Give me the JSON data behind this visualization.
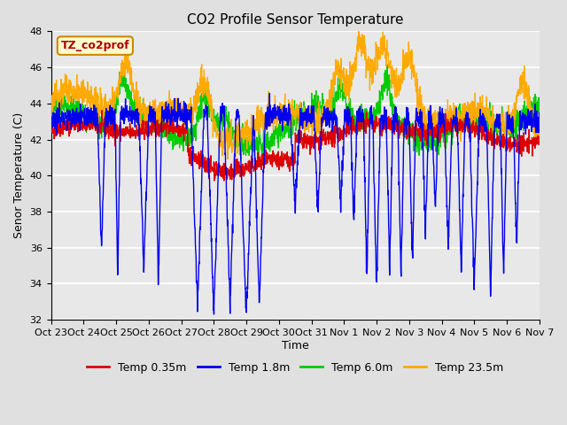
{
  "title": "CO2 Profile Sensor Temperature",
  "xlabel": "Time",
  "ylabel": "Senor Temperature (C)",
  "ylim": [
    32,
    48
  ],
  "yticks": [
    32,
    34,
    36,
    38,
    40,
    42,
    44,
    46,
    48
  ],
  "xtick_labels": [
    "Oct 23",
    "Oct 24",
    "Oct 25",
    "Oct 26",
    "Oct 27",
    "Oct 28",
    "Oct 29",
    "Oct 30",
    "Oct 31",
    "Nov 1",
    "Nov 2",
    "Nov 3",
    "Nov 4",
    "Nov 5",
    "Nov 6",
    "Nov 7"
  ],
  "series_colors": {
    "Temp 0.35m": "#dd0000",
    "Temp 1.8m": "#0000ee",
    "Temp 6.0m": "#00cc00",
    "Temp 23.5m": "#ffaa00"
  },
  "annotation_text": "TZ_co2prof",
  "annotation_bg": "#ffffcc",
  "annotation_border": "#cc8800",
  "annotation_text_color": "#aa0000",
  "bg_color": "#e0e0e0",
  "plot_bg_color": "#e8e8e8",
  "grid_color": "#ffffff",
  "title_fontsize": 11,
  "axis_fontsize": 9,
  "tick_fontsize": 8,
  "legend_fontsize": 9,
  "n_points": 2000,
  "seed": 42
}
